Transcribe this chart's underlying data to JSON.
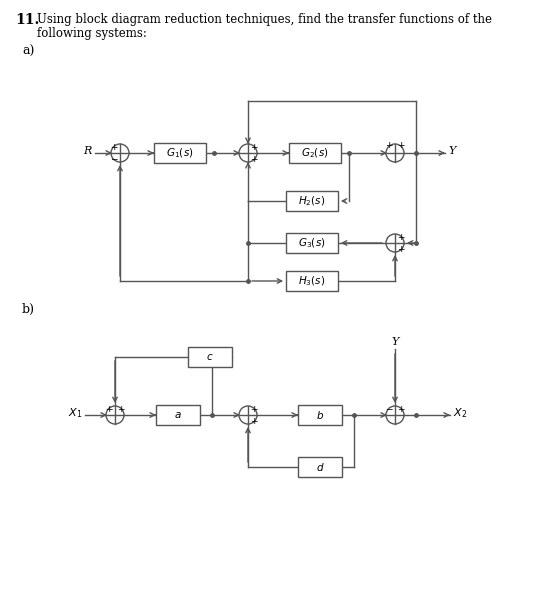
{
  "title_num": "11.",
  "description_line1": "Using block diagram reduction techniques, find the transfer functions of the",
  "description_line2": "following systems:",
  "bg_color": "#ffffff",
  "text_color": "#000000",
  "line_color": "#555555",
  "fig_width": 5.57,
  "fig_height": 6.13,
  "dpi": 100
}
